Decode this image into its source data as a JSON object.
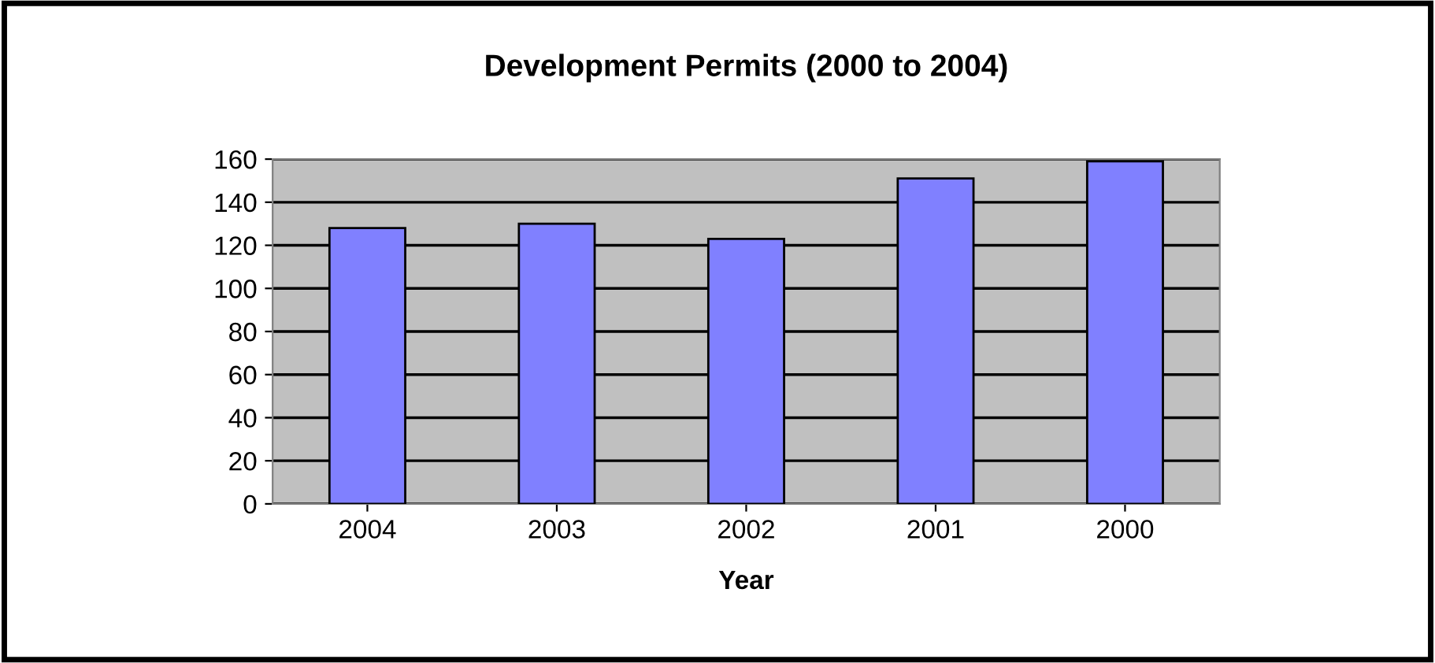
{
  "chart_data": {
    "type": "bar",
    "title": "Development Permits (2000 to 2004)",
    "xlabel": "Year",
    "categories": [
      "2004",
      "2003",
      "2002",
      "2001",
      "2000"
    ],
    "values": [
      128,
      130,
      123,
      151,
      159
    ],
    "color": "#8080ff",
    "ylim": [
      0,
      160
    ],
    "yticks": [
      0,
      20,
      40,
      60,
      80,
      100,
      120,
      140,
      160
    ],
    "grid": "y",
    "legend": false
  }
}
